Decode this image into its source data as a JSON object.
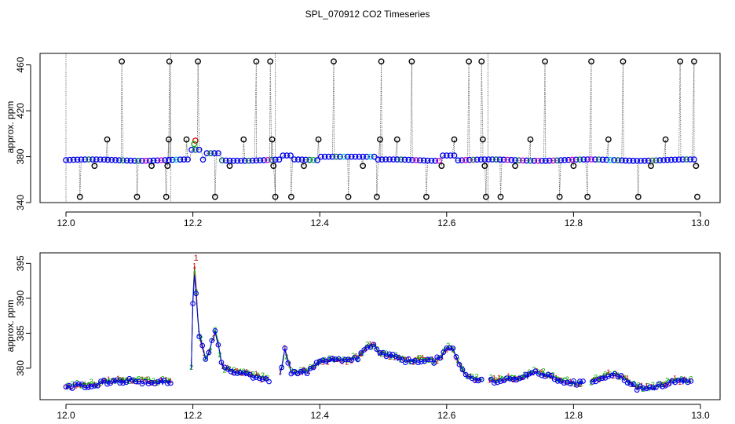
{
  "title": "SPL_070912  CO2 Timeseries",
  "colors": {
    "raw_gray": "#555555",
    "flag": "#000000",
    "series1": "#cc0000",
    "series2": "#00aa00",
    "series3": "#0000ee",
    "cyan": "#00cccc",
    "magenta": "#cc00cc"
  },
  "chart_data": [
    {
      "type": "scatter",
      "name": "top-panel",
      "title": "SPL_070912  CO2 Timeseries",
      "xlabel": "",
      "ylabel": "approx. ppm",
      "xlim": [
        12.0,
        13.0
      ],
      "ylim": [
        340,
        470
      ],
      "xticks": [
        12.0,
        12.2,
        12.4,
        12.6,
        12.8,
        13.0
      ],
      "xtick_labels": [
        "12.0",
        "12.2",
        "12.4",
        "12.6",
        "12.8",
        "13.0"
      ],
      "yticks": [
        340,
        380,
        420,
        460
      ],
      "ytick_labels": [
        "340",
        "380",
        "420",
        "460"
      ],
      "baseline": 377,
      "flag_levels": {
        "high": 463,
        "mid": 395,
        "low": 345,
        "drop": 372
      },
      "flag_points": [
        {
          "x": 12.022,
          "y": 345
        },
        {
          "x": 12.045,
          "y": 372
        },
        {
          "x": 12.065,
          "y": 395
        },
        {
          "x": 12.088,
          "y": 463
        },
        {
          "x": 12.112,
          "y": 345
        },
        {
          "x": 12.135,
          "y": 372
        },
        {
          "x": 12.158,
          "y": 345
        },
        {
          "x": 12.16,
          "y": 372
        },
        {
          "x": 12.162,
          "y": 395
        },
        {
          "x": 12.163,
          "y": 463
        },
        {
          "x": 12.19,
          "y": 395
        },
        {
          "x": 12.208,
          "y": 463
        },
        {
          "x": 12.235,
          "y": 345
        },
        {
          "x": 12.258,
          "y": 372
        },
        {
          "x": 12.28,
          "y": 395
        },
        {
          "x": 12.3,
          "y": 463
        },
        {
          "x": 12.322,
          "y": 463
        },
        {
          "x": 12.325,
          "y": 395
        },
        {
          "x": 12.327,
          "y": 372
        },
        {
          "x": 12.33,
          "y": 345
        },
        {
          "x": 12.355,
          "y": 345
        },
        {
          "x": 12.375,
          "y": 372
        },
        {
          "x": 12.398,
          "y": 395
        },
        {
          "x": 12.422,
          "y": 463
        },
        {
          "x": 12.445,
          "y": 345
        },
        {
          "x": 12.468,
          "y": 372
        },
        {
          "x": 12.49,
          "y": 345
        },
        {
          "x": 12.495,
          "y": 395
        },
        {
          "x": 12.497,
          "y": 463
        },
        {
          "x": 12.522,
          "y": 395
        },
        {
          "x": 12.545,
          "y": 463
        },
        {
          "x": 12.568,
          "y": 345
        },
        {
          "x": 12.592,
          "y": 372
        },
        {
          "x": 12.612,
          "y": 395
        },
        {
          "x": 12.635,
          "y": 463
        },
        {
          "x": 12.655,
          "y": 463
        },
        {
          "x": 12.657,
          "y": 395
        },
        {
          "x": 12.66,
          "y": 372
        },
        {
          "x": 12.662,
          "y": 345
        },
        {
          "x": 12.685,
          "y": 345
        },
        {
          "x": 12.708,
          "y": 372
        },
        {
          "x": 12.732,
          "y": 395
        },
        {
          "x": 12.755,
          "y": 463
        },
        {
          "x": 12.778,
          "y": 345
        },
        {
          "x": 12.8,
          "y": 372
        },
        {
          "x": 12.822,
          "y": 345
        },
        {
          "x": 12.828,
          "y": 463
        },
        {
          "x": 12.855,
          "y": 395
        },
        {
          "x": 12.878,
          "y": 463
        },
        {
          "x": 12.902,
          "y": 345
        },
        {
          "x": 12.922,
          "y": 372
        },
        {
          "x": 12.945,
          "y": 395
        },
        {
          "x": 12.968,
          "y": 463
        },
        {
          "x": 12.99,
          "y": 463
        },
        {
          "x": 12.993,
          "y": 372
        },
        {
          "x": 12.995,
          "y": 345
        }
      ]
    },
    {
      "type": "line",
      "name": "bottom-panel",
      "xlabel": "",
      "ylabel": "approx. ppm",
      "xlim": [
        12.0,
        13.0
      ],
      "ylim": [
        375.5,
        396.5
      ],
      "xticks": [
        12.0,
        12.2,
        12.4,
        12.6,
        12.8,
        13.0
      ],
      "xtick_labels": [
        "12.0",
        "12.2",
        "12.4",
        "12.6",
        "12.8",
        "13.0"
      ],
      "yticks": [
        380,
        385,
        390,
        395
      ],
      "ytick_labels": [
        "380",
        "385",
        "390",
        "395"
      ],
      "series": [
        {
          "name": "1",
          "marker": "1",
          "color": "#cc0000"
        },
        {
          "name": "2",
          "marker": "2",
          "color": "#00aa00"
        },
        {
          "name": "3",
          "marker": "o",
          "color": "#0000ee"
        }
      ],
      "peak_labels": [
        {
          "x": 12.205,
          "y": 395.8,
          "text": "1"
        }
      ],
      "gaps": [
        [
          12.165,
          12.195
        ],
        [
          12.32,
          12.335
        ],
        [
          12.49,
          12.492
        ],
        [
          12.655,
          12.665
        ],
        [
          12.815,
          12.825
        ]
      ],
      "profile": [
        [
          12.0,
          377.2
        ],
        [
          12.02,
          377.5
        ],
        [
          12.04,
          377.6
        ],
        [
          12.06,
          378.0
        ],
        [
          12.08,
          378.2
        ],
        [
          12.1,
          378.2
        ],
        [
          12.12,
          378.1
        ],
        [
          12.14,
          378.0
        ],
        [
          12.16,
          378.0
        ],
        [
          12.195,
          378.0
        ],
        [
          12.198,
          380.0
        ],
        [
          12.2,
          389.5
        ],
        [
          12.203,
          394.5
        ],
        [
          12.206,
          388.5
        ],
        [
          12.21,
          384.5
        ],
        [
          12.215,
          383.0
        ],
        [
          12.22,
          381.5
        ],
        [
          12.226,
          382.0
        ],
        [
          12.23,
          383.8
        ],
        [
          12.235,
          385.0
        ],
        [
          12.24,
          383.5
        ],
        [
          12.245,
          380.5
        ],
        [
          12.25,
          379.8
        ],
        [
          12.27,
          379.5
        ],
        [
          12.29,
          379.0
        ],
        [
          12.31,
          378.5
        ],
        [
          12.32,
          378.3
        ],
        [
          12.335,
          378.5
        ],
        [
          12.34,
          380.0
        ],
        [
          12.345,
          382.5
        ],
        [
          12.35,
          381.0
        ],
        [
          12.355,
          379.5
        ],
        [
          12.36,
          379.2
        ],
        [
          12.38,
          379.5
        ],
        [
          12.4,
          380.8
        ],
        [
          12.42,
          381.2
        ],
        [
          12.44,
          381.0
        ],
        [
          12.46,
          381.5
        ],
        [
          12.475,
          383.0
        ],
        [
          12.485,
          383.2
        ],
        [
          12.49,
          382.5
        ],
        [
          12.492,
          382.0
        ],
        [
          12.5,
          382.0
        ],
        [
          12.52,
          381.5
        ],
        [
          12.54,
          381.0
        ],
        [
          12.56,
          381.2
        ],
        [
          12.58,
          381.0
        ],
        [
          12.59,
          381.5
        ],
        [
          12.6,
          382.8
        ],
        [
          12.61,
          382.5
        ],
        [
          12.62,
          380.5
        ],
        [
          12.63,
          379.0
        ],
        [
          12.64,
          378.5
        ],
        [
          12.655,
          378.2
        ],
        [
          12.665,
          378.3
        ],
        [
          12.68,
          378.2
        ],
        [
          12.7,
          378.5
        ],
        [
          12.72,
          378.5
        ],
        [
          12.74,
          379.5
        ],
        [
          12.75,
          379.2
        ],
        [
          12.76,
          378.8
        ],
        [
          12.78,
          378.2
        ],
        [
          12.8,
          377.9
        ],
        [
          12.815,
          377.8
        ],
        [
          12.825,
          378.0
        ],
        [
          12.84,
          378.5
        ],
        [
          12.86,
          379.2
        ],
        [
          12.88,
          378.5
        ],
        [
          12.9,
          377.2
        ],
        [
          12.92,
          377.0
        ],
        [
          12.94,
          377.6
        ],
        [
          12.96,
          378.2
        ],
        [
          12.985,
          378.0
        ]
      ]
    }
  ]
}
